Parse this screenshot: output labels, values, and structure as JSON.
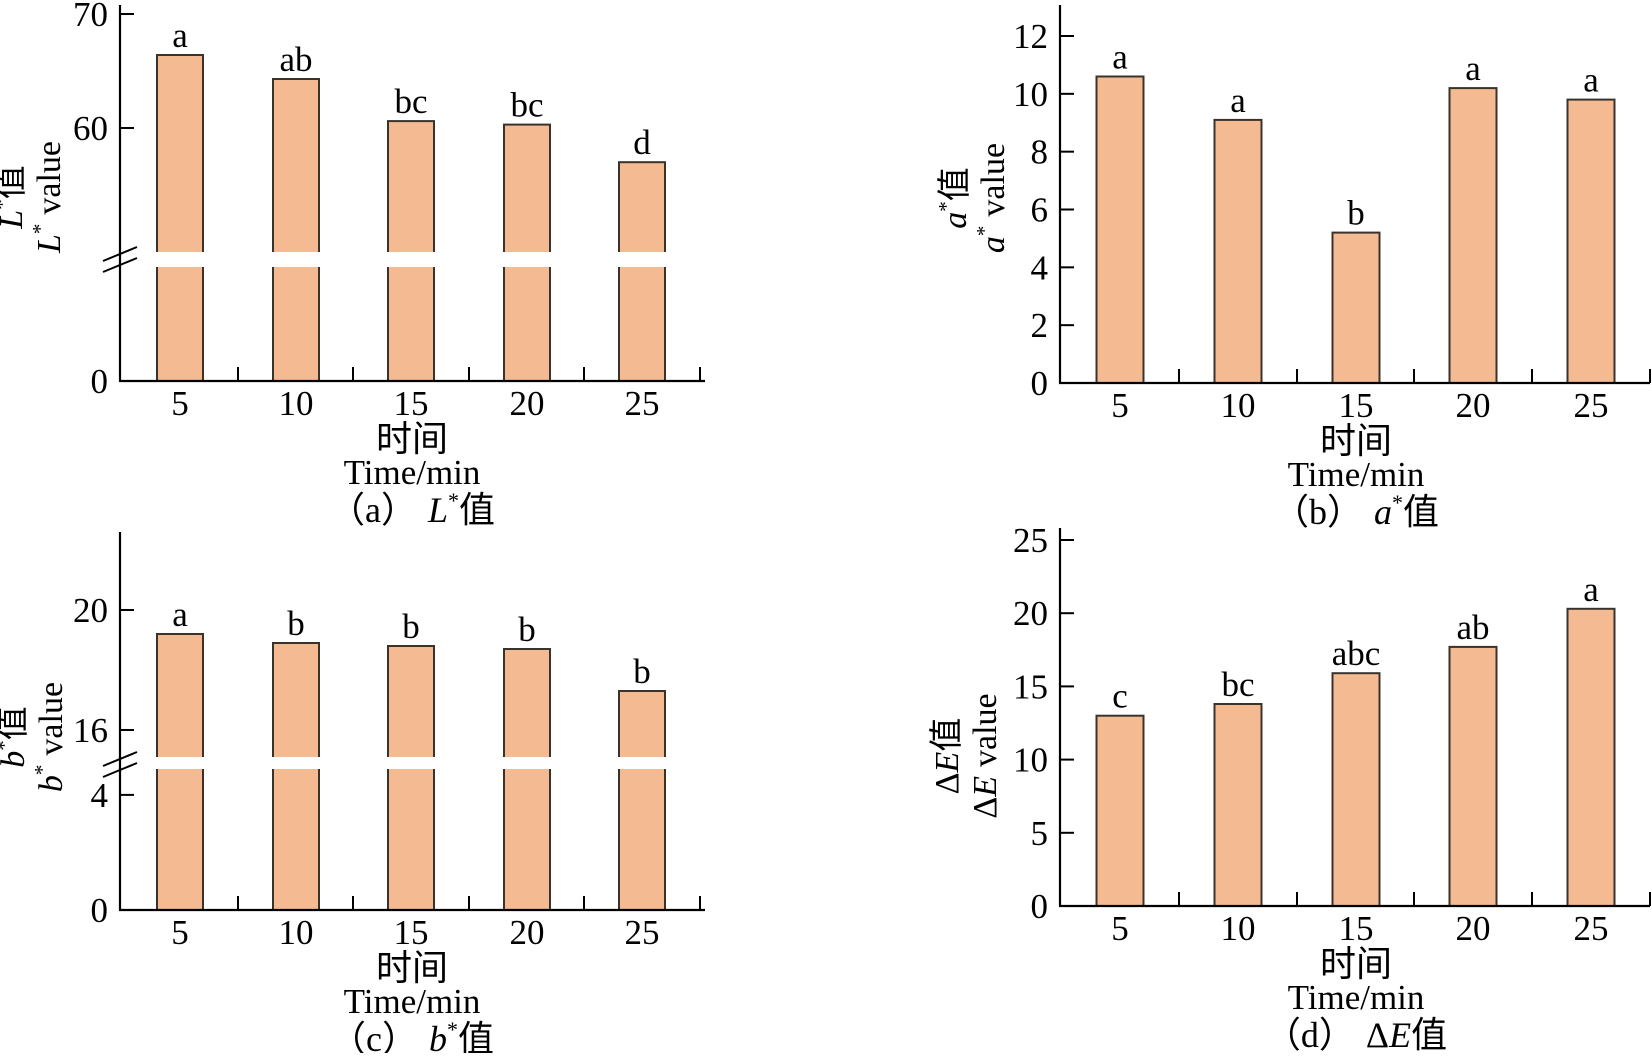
{
  "figure": {
    "background": "#ffffff",
    "bar_fill": "#f4bb93",
    "bar_stroke": "#3a332c",
    "axis_color": "#000000",
    "significance_letter_color": "#000000"
  },
  "chart_data": [
    {
      "id": "a",
      "type": "bar",
      "caption_prefix": "（a）",
      "caption_symbol": "L*",
      "caption_suffix": "值",
      "ylabel_cn": {
        "sym": "L*",
        "suffix": "值"
      },
      "ylabel_en": {
        "sym": "L*",
        "suffix": " value"
      },
      "xlabel_cn": "时间",
      "xlabel_en": "Time/min",
      "categories": [
        5,
        10,
        15,
        20,
        25
      ],
      "values": [
        66.4,
        64.3,
        60.6,
        60.3,
        57.0
      ],
      "letters": [
        "a",
        "ab",
        "bc",
        "bc",
        "d"
      ],
      "yticks": [
        0,
        60,
        70
      ],
      "ylim": [
        0,
        70
      ],
      "axis_break": true,
      "grid": false,
      "legend": "none"
    },
    {
      "id": "b",
      "type": "bar",
      "caption_prefix": "（b）",
      "caption_symbol": "a*",
      "caption_suffix": "值",
      "ylabel_cn": {
        "sym": "a*",
        "suffix": "值"
      },
      "ylabel_en": {
        "sym": "a*",
        "suffix": " value"
      },
      "xlabel_cn": "时间",
      "xlabel_en": "Time/min",
      "categories": [
        5,
        10,
        15,
        20,
        25
      ],
      "values": [
        10.6,
        9.1,
        5.2,
        10.2,
        9.8
      ],
      "letters": [
        "a",
        "a",
        "b",
        "a",
        "a"
      ],
      "yticks": [
        0,
        2,
        4,
        6,
        8,
        10,
        12
      ],
      "ylim": [
        0,
        13
      ],
      "axis_break": false,
      "grid": false,
      "legend": "none"
    },
    {
      "id": "c",
      "type": "bar",
      "caption_prefix": "（c）",
      "caption_symbol": "b*",
      "caption_suffix": "值",
      "ylabel_cn": {
        "sym": "b*",
        "suffix": "值"
      },
      "ylabel_en": {
        "sym": "b*",
        "suffix": " value"
      },
      "xlabel_cn": "时间",
      "xlabel_en": "Time/min",
      "categories": [
        5,
        10,
        15,
        20,
        25
      ],
      "values": [
        19.2,
        18.9,
        18.8,
        18.7,
        17.3
      ],
      "letters": [
        "a",
        "b",
        "b",
        "b",
        "b"
      ],
      "yticks": [
        0,
        4,
        16,
        20
      ],
      "ylim": [
        0,
        22
      ],
      "axis_break": true,
      "grid": false,
      "legend": "none"
    },
    {
      "id": "d",
      "type": "bar",
      "caption_prefix": "（d）",
      "caption_symbol": "ΔE",
      "caption_suffix": "值",
      "ylabel_cn": {
        "sym": "ΔE",
        "suffix": "值"
      },
      "ylabel_en": {
        "sym": "ΔE",
        "suffix": " value"
      },
      "xlabel_cn": "时间",
      "xlabel_en": "Time/min",
      "categories": [
        5,
        10,
        15,
        20,
        25
      ],
      "values": [
        13.0,
        13.8,
        15.9,
        17.7,
        20.3
      ],
      "letters": [
        "c",
        "bc",
        "abc",
        "ab",
        "a"
      ],
      "yticks": [
        0,
        5,
        10,
        15,
        20,
        25
      ],
      "ylim": [
        0,
        25
      ],
      "axis_break": false,
      "grid": false,
      "legend": "none"
    }
  ]
}
